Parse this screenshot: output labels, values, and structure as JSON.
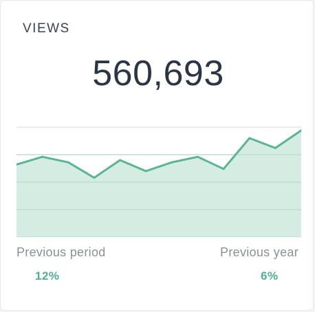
{
  "widget": {
    "title": "VIEWS",
    "total": "560,693"
  },
  "comparison": {
    "previous_period_label": "Previous period",
    "previous_period_value": "12%",
    "previous_year_label": "Previous year",
    "previous_year_value": "6%"
  },
  "colors": {
    "line": "#5ab593",
    "fill": "#d2ebe0",
    "grid": "#d9dcdf",
    "accent": "#4fb08c"
  },
  "chart_data": {
    "type": "area",
    "title": "",
    "xlabel": "",
    "ylabel": "",
    "x": [
      1,
      2,
      3,
      4,
      5,
      6,
      7,
      8,
      9,
      10,
      11,
      12
    ],
    "series": [
      {
        "values": [
          66,
          73,
          68,
          54,
          70,
          60,
          68,
          73,
          62,
          90,
          81,
          97
        ]
      }
    ],
    "ylim": [
      0,
      100
    ],
    "grid": true,
    "legend": "none"
  }
}
